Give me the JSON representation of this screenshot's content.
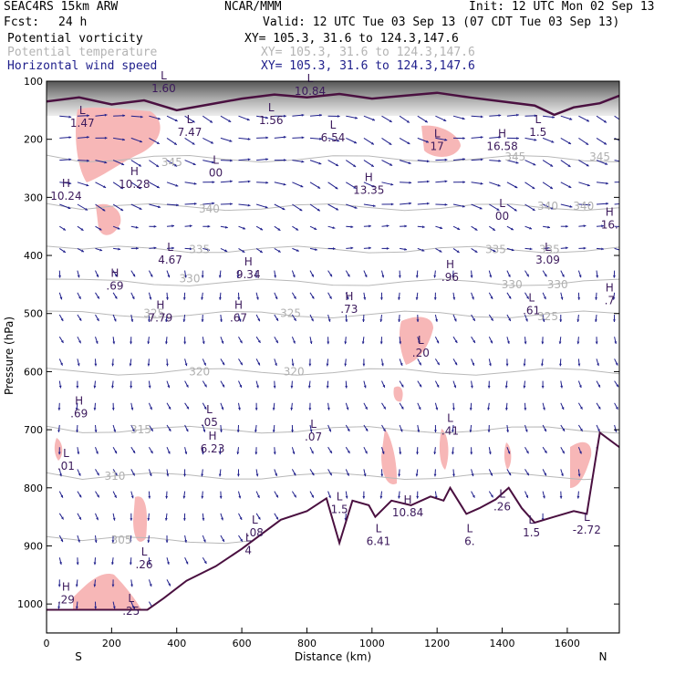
{
  "header": {
    "model": "SEAC4RS 15km ARW",
    "org": "NCAR/MMM",
    "init": "Init: 12 UTC Mon 02 Sep 13",
    "fcst_label": "Fcst:",
    "fcst_value": "24 h",
    "valid": "Valid: 12 UTC Tue 03 Sep 13 (07 CDT Tue 03 Sep 13)",
    "fields": [
      {
        "name": "Potential vorticity",
        "xy": "XY= 105.3, 31.6 to 124.3,147.6",
        "color": "#000000"
      },
      {
        "name": "Potential temperature",
        "xy": "XY= 105.3, 31.6 to 124.3,147.6",
        "color": "#b4b4b4"
      },
      {
        "name": "Horizontal wind speed",
        "xy": "XY= 105.3, 31.6 to 124.3,147.6",
        "color": "#20208c"
      }
    ]
  },
  "chart_data": {
    "type": "cross-section",
    "xlabel": "Distance (km)",
    "ylabel": "Pressure (hPa)",
    "xlim": [
      0,
      1760
    ],
    "ylim": [
      1050,
      100
    ],
    "x_ticks": [
      0,
      200,
      400,
      600,
      800,
      1000,
      1200,
      1400,
      1600
    ],
    "y_ticks": [
      100,
      200,
      300,
      400,
      500,
      600,
      700,
      800,
      900,
      1000
    ],
    "left_end": "S",
    "right_end": "N",
    "theta_contours": [
      {
        "value": "345",
        "label_at": [
          [
            385,
            240
          ],
          [
            1440,
            230
          ],
          [
            1700,
            230
          ]
        ]
      },
      {
        "value": "340",
        "label_at": [
          [
            500,
            320
          ],
          [
            1540,
            315
          ],
          [
            1650,
            315
          ]
        ]
      },
      {
        "value": "335",
        "label_at": [
          [
            470,
            390
          ],
          [
            1380,
            390
          ],
          [
            1545,
            390
          ]
        ]
      },
      {
        "value": "330",
        "label_at": [
          [
            440,
            440
          ],
          [
            1430,
            450
          ],
          [
            1570,
            450
          ]
        ]
      },
      {
        "value": "325",
        "label_at": [
          [
            330,
            500
          ],
          [
            750,
            500
          ],
          [
            1540,
            505
          ]
        ]
      },
      {
        "value": "320",
        "label_at": [
          [
            470,
            600
          ],
          [
            760,
            600
          ]
        ]
      },
      {
        "value": "315",
        "label_at": [
          [
            290,
            700
          ]
        ]
      },
      {
        "value": "310",
        "label_at": [
          [
            210,
            780
          ]
        ]
      },
      {
        "value": "305",
        "label_at": [
          [
            230,
            890
          ]
        ]
      }
    ],
    "pv_extrema": [
      {
        "type": "L",
        "value": "1.47",
        "x": 110,
        "p": 160
      },
      {
        "type": "L",
        "value": "7.47",
        "x": 440,
        "p": 175
      },
      {
        "type": "L",
        "value": "1.56",
        "x": 690,
        "p": 155
      },
      {
        "type": "L",
        "value": "6.54",
        "x": 880,
        "p": 185
      },
      {
        "type": "L",
        "value": "00",
        "x": 520,
        "p": 245
      },
      {
        "type": "H",
        "value": "10.28",
        "x": 270,
        "p": 265
      },
      {
        "type": "H",
        "value": "10.24",
        "x": 60,
        "p": 285
      },
      {
        "type": "H",
        "value": "13.35",
        "x": 990,
        "p": 275
      },
      {
        "type": "L",
        "value": "17",
        "x": 1200,
        "p": 200
      },
      {
        "type": "H",
        "value": "16.58",
        "x": 1400,
        "p": 200
      },
      {
        "type": "L",
        "value": "1.5",
        "x": 1510,
        "p": 175
      },
      {
        "type": "L",
        "value": "00",
        "x": 1400,
        "p": 320
      },
      {
        "type": "H",
        "value": "16.",
        "x": 1730,
        "p": 335
      },
      {
        "type": "L",
        "value": "4.67",
        "x": 380,
        "p": 395
      },
      {
        "type": "H",
        "value": "9.34",
        "x": 620,
        "p": 420
      },
      {
        "type": "H",
        "value": ".96",
        "x": 1240,
        "p": 425
      },
      {
        "type": "L",
        "value": "3.09",
        "x": 1540,
        "p": 395
      },
      {
        "type": "H",
        "value": ".69",
        "x": 210,
        "p": 440
      },
      {
        "type": "H",
        "value": "7.79",
        "x": 350,
        "p": 495
      },
      {
        "type": "H",
        "value": ".67",
        "x": 590,
        "p": 495
      },
      {
        "type": "H",
        "value": ".73",
        "x": 930,
        "p": 480
      },
      {
        "type": "L",
        "value": ".61",
        "x": 1490,
        "p": 482
      },
      {
        "type": "H",
        "value": ".7",
        "x": 1730,
        "p": 465
      },
      {
        "type": "L",
        "value": ".20",
        "x": 1150,
        "p": 555
      },
      {
        "type": "H",
        "value": ".69",
        "x": 100,
        "p": 660
      },
      {
        "type": "L",
        "value": ".05",
        "x": 500,
        "p": 675
      },
      {
        "type": "H",
        "value": "6.23",
        "x": 510,
        "p": 720
      },
      {
        "type": "L",
        "value": ".07",
        "x": 820,
        "p": 700
      },
      {
        "type": "L",
        "value": ".41",
        "x": 1240,
        "p": 690
      },
      {
        "type": "L",
        "value": ".01",
        "x": 60,
        "p": 750
      },
      {
        "type": "L",
        "value": "1.5",
        "x": 900,
        "p": 825
      },
      {
        "type": "H",
        "value": "10.84",
        "x": 1110,
        "p": 830
      },
      {
        "type": "L",
        "value": "6.41",
        "x": 1020,
        "p": 880
      },
      {
        "type": "L",
        "value": "6.",
        "x": 1300,
        "p": 880
      },
      {
        "type": "L",
        "value": ".26",
        "x": 1400,
        "p": 820
      },
      {
        "type": "L",
        "value": "-2.72",
        "x": 1660,
        "p": 860
      },
      {
        "type": "L",
        "value": "1.5",
        "x": 1490,
        "p": 865
      },
      {
        "type": "L",
        "value": ".08",
        "x": 640,
        "p": 865
      },
      {
        "type": "L",
        "value": "4",
        "x": 620,
        "p": 895
      },
      {
        "type": "L",
        "value": ".26",
        "x": 300,
        "p": 920
      },
      {
        "type": "H",
        "value": ".29",
        "x": 60,
        "p": 980
      },
      {
        "type": "L",
        "value": ".25",
        "x": 260,
        "p": 1000
      },
      {
        "type": "L",
        "value": "1.60",
        "x": 360,
        "p": 100
      },
      {
        "type": "L",
        "value": "10.84",
        "x": 810,
        "p": 105
      }
    ],
    "terrain_pressure": [
      [
        0,
        1010
      ],
      [
        310,
        1010
      ],
      [
        360,
        990
      ],
      [
        430,
        960
      ],
      [
        520,
        935
      ],
      [
        600,
        905
      ],
      [
        660,
        880
      ],
      [
        720,
        855
      ],
      [
        800,
        840
      ],
      [
        860,
        818
      ],
      [
        900,
        895
      ],
      [
        940,
        822
      ],
      [
        990,
        830
      ],
      [
        1010,
        850
      ],
      [
        1060,
        822
      ],
      [
        1120,
        830
      ],
      [
        1180,
        815
      ],
      [
        1220,
        822
      ],
      [
        1240,
        800
      ],
      [
        1290,
        845
      ],
      [
        1330,
        835
      ],
      [
        1380,
        820
      ],
      [
        1420,
        800
      ],
      [
        1460,
        835
      ],
      [
        1500,
        860
      ],
      [
        1560,
        850
      ],
      [
        1620,
        840
      ],
      [
        1660,
        845
      ],
      [
        1700,
        705
      ],
      [
        1760,
        730
      ]
    ],
    "tropopause_pressure": [
      [
        0,
        135
      ],
      [
        100,
        128
      ],
      [
        200,
        140
      ],
      [
        300,
        133
      ],
      [
        400,
        150
      ],
      [
        500,
        140
      ],
      [
        600,
        130
      ],
      [
        700,
        123
      ],
      [
        800,
        128
      ],
      [
        900,
        122
      ],
      [
        1000,
        130
      ],
      [
        1100,
        125
      ],
      [
        1200,
        120
      ],
      [
        1300,
        128
      ],
      [
        1400,
        135
      ],
      [
        1500,
        142
      ],
      [
        1560,
        158
      ],
      [
        1620,
        145
      ],
      [
        1700,
        138
      ],
      [
        1760,
        125
      ]
    ]
  }
}
